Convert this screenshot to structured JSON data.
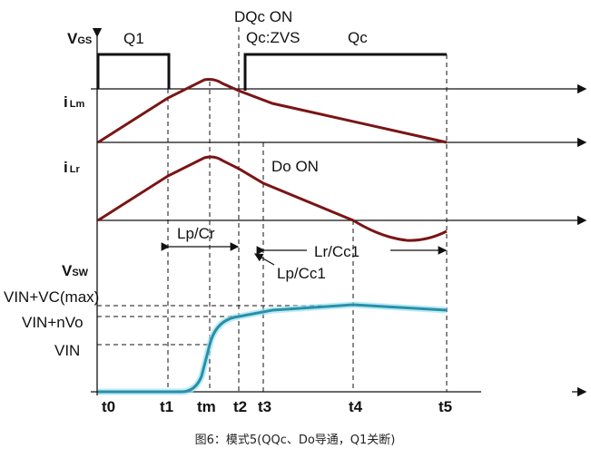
{
  "signals": {
    "vgs": {
      "main": "V",
      "sub": "GS"
    },
    "ilm": {
      "main": "i",
      "sub": "Lm"
    },
    "ilr": {
      "main": "i",
      "sub": "Lr"
    },
    "vsw": {
      "main": "V",
      "sub": "SW"
    }
  },
  "annotations": {
    "q1": "Q1",
    "dqc_on": "DQc ON",
    "qc_zvs": "Qc:ZVS",
    "qc": "Qc",
    "do_on": "Do ON",
    "lp_cr": "Lp/Cr",
    "lp_cc1": "Lp/Cc1",
    "lr_cc1": "Lr/Cc1"
  },
  "levels": {
    "vin_vc_max": "VIN+VC(max)",
    "vin_nvo": "VIN+nVo",
    "vin": "VIN"
  },
  "time_labels": [
    "t0",
    "t1",
    "tm",
    "t2",
    "t3",
    "t4",
    "t5"
  ],
  "caption": "图6：模式5(QQc、Do导通，Q1关断)",
  "colors": {
    "current": "#7a1515",
    "voltage": "#2a8fa8"
  }
}
